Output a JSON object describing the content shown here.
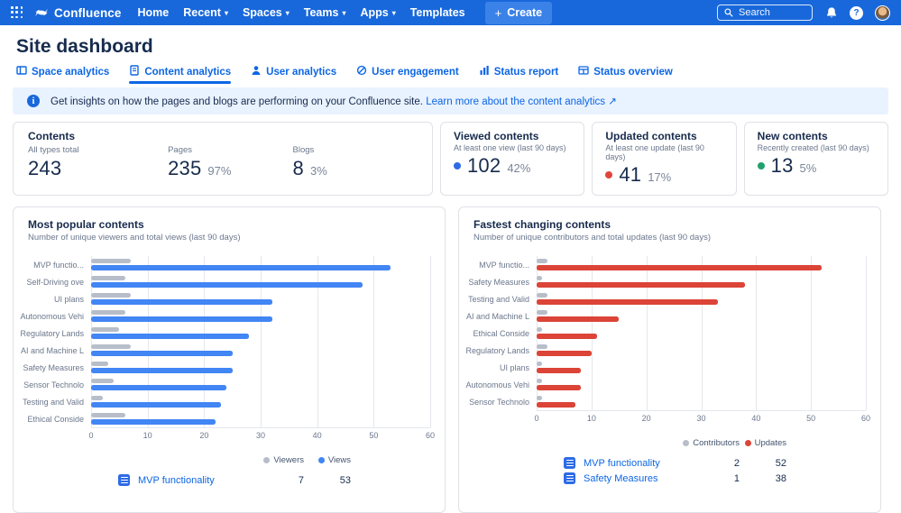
{
  "nav": {
    "brand": "Confluence",
    "items": [
      {
        "label": "Home",
        "chevron": false
      },
      {
        "label": "Recent",
        "chevron": true
      },
      {
        "label": "Spaces",
        "chevron": true
      },
      {
        "label": "Teams",
        "chevron": true
      },
      {
        "label": "Apps",
        "chevron": true
      },
      {
        "label": "Templates",
        "chevron": false
      }
    ],
    "create_label": "Create",
    "search_placeholder": "Search"
  },
  "page": {
    "title": "Site dashboard"
  },
  "tabs": [
    {
      "label": "Space analytics",
      "icon": "board-icon",
      "active": false
    },
    {
      "label": "Content analytics",
      "icon": "page-icon",
      "active": true
    },
    {
      "label": "User analytics",
      "icon": "person-icon",
      "active": false
    },
    {
      "label": "User engagement",
      "icon": "engagement-icon",
      "active": false
    },
    {
      "label": "Status report",
      "icon": "bar-chart-icon",
      "active": false
    },
    {
      "label": "Status overview",
      "icon": "table-icon",
      "active": false
    }
  ],
  "banner": {
    "text": "Get insights on how the pages and blogs are performing on your Confluence site.",
    "link": "Learn more about the content analytics",
    "external_arrow": "↗"
  },
  "stats": {
    "contents": {
      "title": "Contents",
      "columns": [
        {
          "label": "All types total",
          "value": "243",
          "percent": ""
        },
        {
          "label": "Pages",
          "value": "235",
          "percent": "97%"
        },
        {
          "label": "Blogs",
          "value": "8",
          "percent": "3%"
        }
      ]
    },
    "cards": [
      {
        "title": "Viewed contents",
        "subtitle": "At least one view (last 90 days)",
        "value": "102",
        "percent": "42%",
        "dot_color": "#2E6BE5"
      },
      {
        "title": "Updated contents",
        "subtitle": "At least one update (last 90 days)",
        "value": "41",
        "percent": "17%",
        "dot_color": "#E0453A"
      },
      {
        "title": "New contents",
        "subtitle": "Recently created (last 90 days)",
        "value": "13",
        "percent": "5%",
        "dot_color": "#22A06B"
      }
    ]
  },
  "chart_data": [
    {
      "type": "bar",
      "orientation": "horizontal",
      "title": "Most popular contents",
      "subtitle": "Number of unique viewers and total views (last 90 days)",
      "xlim": [
        0,
        60
      ],
      "xticks": [
        0,
        10,
        20,
        30,
        40,
        50,
        60
      ],
      "grid": true,
      "legend_position": "bottom-right",
      "categories": [
        "MVP functio...",
        "Self-Driving ove",
        "UI plans",
        "Autonomous Vehi",
        "Regulatory Lands",
        "AI and Machine L",
        "Safety Measures",
        "Sensor Technolo",
        "Testing and Valid",
        "Ethical Conside"
      ],
      "series": [
        {
          "name": "Viewers",
          "color": "#B7BEC9",
          "values": [
            7,
            6,
            7,
            6,
            5,
            7,
            3,
            4,
            2,
            6
          ]
        },
        {
          "name": "Views",
          "color": "#4285F4",
          "values": [
            53,
            48,
            32,
            32,
            28,
            25,
            25,
            24,
            23,
            22
          ]
        }
      ],
      "table_rows": [
        {
          "title": "MVP functionality",
          "values": [
            "7",
            "53"
          ]
        }
      ]
    },
    {
      "type": "bar",
      "orientation": "horizontal",
      "title": "Fastest changing contents",
      "subtitle": "Number of unique contributors and total updates (last 90 days)",
      "xlim": [
        0,
        60
      ],
      "xticks": [
        0,
        10,
        20,
        30,
        40,
        50,
        60
      ],
      "grid": true,
      "legend_position": "bottom-right",
      "categories": [
        "MVP functio...",
        "Safety Measures",
        "Testing and Valid",
        "AI and Machine L",
        "Ethical Conside",
        "Regulatory Lands",
        "UI plans",
        "Autonomous Vehi",
        "Sensor Technolo"
      ],
      "series": [
        {
          "name": "Contributors",
          "color": "#B7BEC9",
          "values": [
            2,
            1,
            2,
            2,
            1,
            2,
            1,
            1,
            1
          ]
        },
        {
          "name": "Updates",
          "color": "#DB4437",
          "values": [
            52,
            38,
            33,
            15,
            11,
            10,
            8,
            8,
            7
          ]
        }
      ],
      "table_rows": [
        {
          "title": "MVP functionality",
          "values": [
            "2",
            "52"
          ]
        },
        {
          "title": "Safety Measures",
          "values": [
            "1",
            "38"
          ]
        }
      ]
    }
  ]
}
